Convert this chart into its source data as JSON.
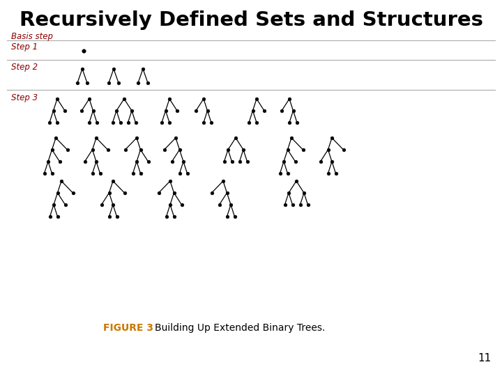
{
  "title": "Recursively Defined Sets and Structures",
  "title_fontsize": 21,
  "title_color": "#000000",
  "label_color": "#8B0000",
  "label_fontsize": 8.5,
  "caption_figure": "FIGURE 3",
  "caption_text": "Building Up Extended Binary Trees.",
  "caption_figure_color": "#CC7700",
  "caption_text_color": "#000000",
  "caption_fontsize": 10,
  "page_number": "11",
  "background_color": "#ffffff",
  "dot_color": "#000000",
  "line_color": "#000000",
  "dot_size": 3.5,
  "line_width": 0.9
}
